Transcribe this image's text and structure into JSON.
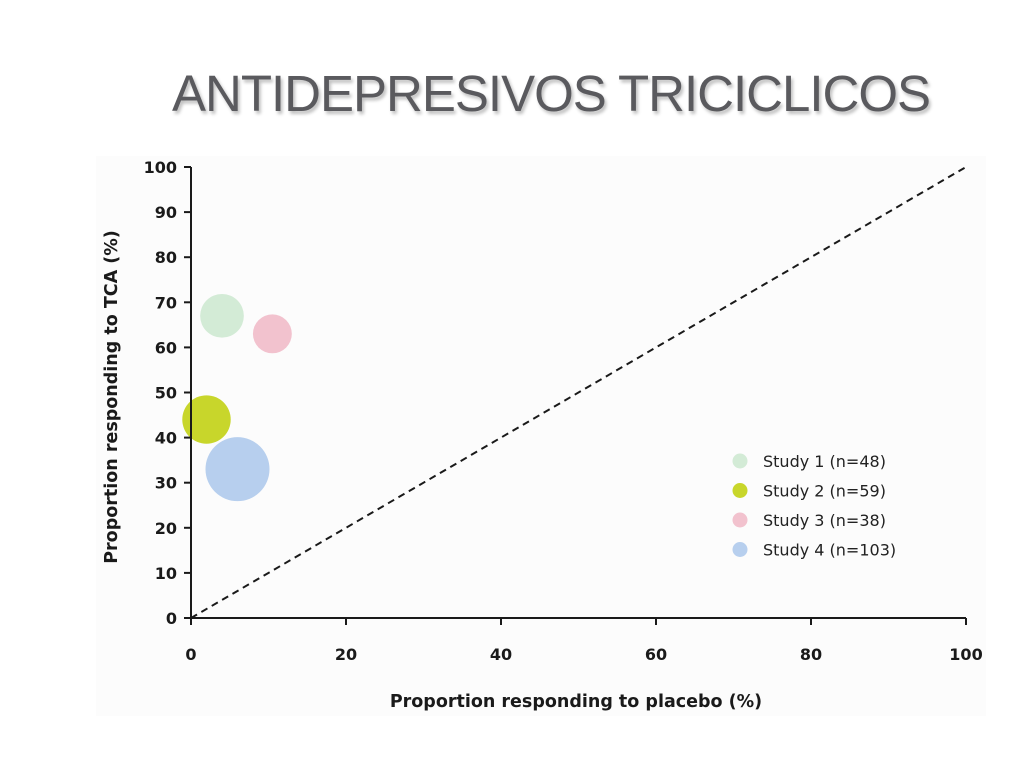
{
  "slide": {
    "title": "ANTIDEPRESIVOS TRICICLICOS"
  },
  "chart_data": {
    "type": "scatter",
    "title": "",
    "xlabel": "Proportion responding to placebo (%)",
    "ylabel": "Proportion responding to TCA (%)",
    "xlim": [
      0,
      100
    ],
    "ylim": [
      0,
      100
    ],
    "x_ticks": [
      0,
      20,
      40,
      60,
      80,
      100
    ],
    "y_ticks": [
      0,
      10,
      20,
      30,
      40,
      50,
      60,
      70,
      80,
      90,
      100
    ],
    "grid": false,
    "legend_position": "right",
    "reference_line": {
      "style": "dashed",
      "from": [
        0,
        0
      ],
      "to": [
        100,
        100
      ]
    },
    "series": [
      {
        "name": "Study 1 (n=48)",
        "n": 48,
        "x": 4,
        "y": 67,
        "color": "#d3ebd6"
      },
      {
        "name": "Study 2 (n=59)",
        "n": 59,
        "x": 2,
        "y": 44,
        "color": "#c8d62b"
      },
      {
        "name": "Study 3 (n=38)",
        "n": 38,
        "x": 10.5,
        "y": 63,
        "color": "#f2c2ce"
      },
      {
        "name": "Study 4 (n=103)",
        "n": 103,
        "x": 6,
        "y": 33,
        "color": "#b7cfee"
      }
    ]
  }
}
